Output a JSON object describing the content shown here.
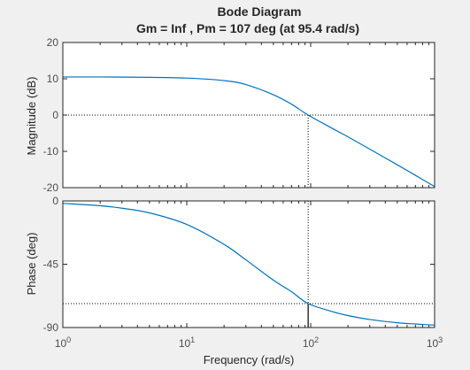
{
  "chart_data": {
    "type": "line",
    "title": "Bode Diagram",
    "subtitle": "Gm = Inf ,  Pm = 107 deg (at 95.4 rad/s)",
    "xlabel": "Frequency  (rad/s)",
    "xscale": "log",
    "xlim": [
      1,
      1000
    ],
    "x_tick_labels": [
      {
        "base": "10",
        "exp": "0"
      },
      {
        "base": "10",
        "exp": "1"
      },
      {
        "base": "10",
        "exp": "2"
      },
      {
        "base": "10",
        "exp": "3"
      }
    ],
    "line_color": "#0072bd",
    "grid": false,
    "crossover_frequency": 95.4,
    "panels": [
      {
        "ylabel": "Magnitude (dB)",
        "ylim": [
          -20,
          20
        ],
        "yticks": [
          20,
          10,
          0,
          -10,
          -20
        ],
        "ytick_labels": [
          "20",
          "10",
          "0",
          "-10",
          "-20"
        ],
        "reference_line": 0,
        "x": [
          1,
          2,
          5,
          10,
          20,
          30,
          50,
          70,
          95.4,
          150,
          200,
          300,
          500,
          700,
          1000
        ],
        "y": [
          10.5,
          10.5,
          10.4,
          10.2,
          9.5,
          8.4,
          5.6,
          3.0,
          0.0,
          -3.7,
          -6.0,
          -9.4,
          -13.7,
          -16.6,
          -19.7
        ]
      },
      {
        "ylabel": "Phase (deg)",
        "ylim": [
          -90,
          0
        ],
        "yticks": [
          0,
          -45,
          -90
        ],
        "ytick_labels": [
          "0",
          "-45",
          "-90"
        ],
        "reference_line": -73,
        "x": [
          1,
          2,
          3,
          5,
          10,
          20,
          30,
          50,
          70,
          95.4,
          150,
          200,
          300,
          500,
          700,
          1000
        ],
        "y": [
          -1.7,
          -3.4,
          -5.2,
          -8.5,
          -16.7,
          -30.9,
          -41.9,
          -56.3,
          -64.5,
          -73.0,
          -78.7,
          -81.5,
          -84.3,
          -86.6,
          -87.5,
          -88.3
        ]
      }
    ]
  }
}
